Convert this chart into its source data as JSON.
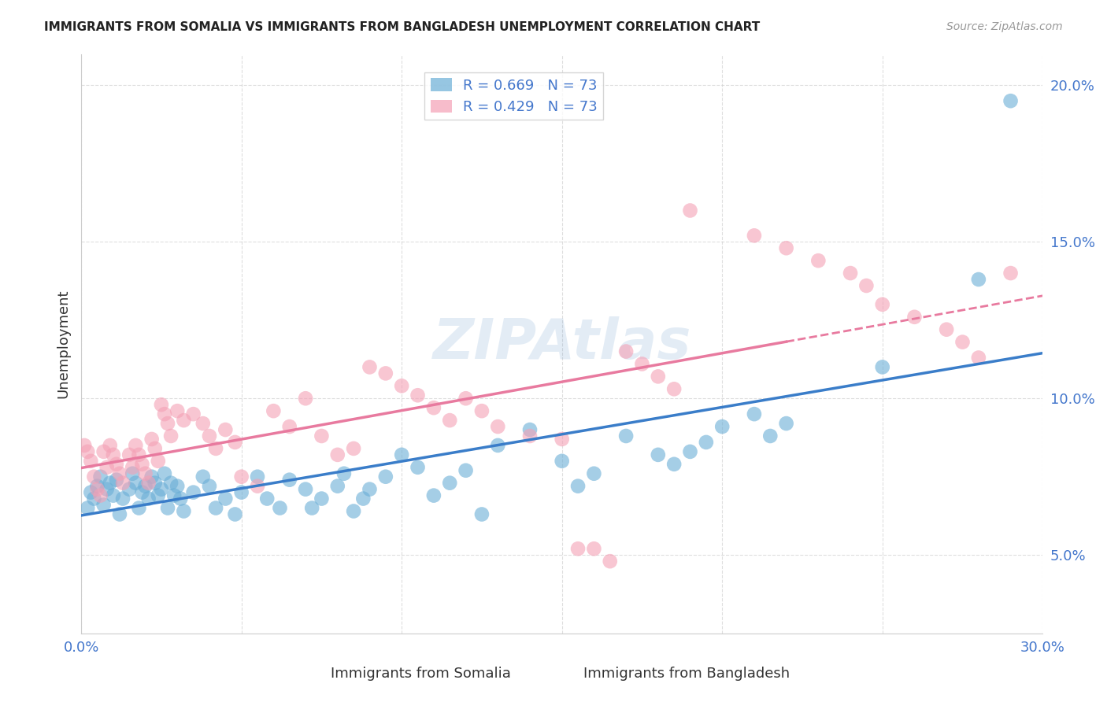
{
  "title": "IMMIGRANTS FROM SOMALIA VS IMMIGRANTS FROM BANGLADESH UNEMPLOYMENT CORRELATION CHART",
  "source": "Source: ZipAtlas.com",
  "xlabel_somalia": "Immigrants from Somalia",
  "xlabel_bangladesh": "Immigrants from Bangladesh",
  "ylabel": "Unemployment",
  "xmin": 0.0,
  "xmax": 0.3,
  "ymin": 0.025,
  "ymax": 0.21,
  "yticks": [
    0.05,
    0.1,
    0.15,
    0.2
  ],
  "ytick_labels": [
    "5.0%",
    "10.0%",
    "15.0%",
    "20.0%"
  ],
  "xticks": [
    0.0,
    0.05,
    0.1,
    0.15,
    0.2,
    0.25,
    0.3
  ],
  "xtick_labels": [
    "0.0%",
    "",
    "",
    "",
    "",
    "",
    "30.0%"
  ],
  "somalia_color": "#6aaed6",
  "bangladesh_color": "#f4a0b5",
  "somalia_line_color": "#3a7dc9",
  "bangladesh_line_color": "#e87a9f",
  "axis_color": "#6699cc",
  "watermark": "ZIPAtlas",
  "R_somalia": 0.669,
  "R_bangladesh": 0.429,
  "N": 73,
  "somalia_x": [
    0.002,
    0.003,
    0.004,
    0.005,
    0.006,
    0.007,
    0.008,
    0.009,
    0.01,
    0.011,
    0.012,
    0.013,
    0.015,
    0.016,
    0.017,
    0.018,
    0.019,
    0.02,
    0.021,
    0.022,
    0.023,
    0.024,
    0.025,
    0.026,
    0.027,
    0.028,
    0.029,
    0.03,
    0.031,
    0.032,
    0.035,
    0.038,
    0.04,
    0.042,
    0.045,
    0.048,
    0.05,
    0.055,
    0.058,
    0.062,
    0.065,
    0.07,
    0.072,
    0.075,
    0.08,
    0.082,
    0.085,
    0.088,
    0.09,
    0.095,
    0.1,
    0.105,
    0.11,
    0.115,
    0.12,
    0.125,
    0.13,
    0.14,
    0.15,
    0.155,
    0.16,
    0.17,
    0.18,
    0.185,
    0.19,
    0.195,
    0.2,
    0.21,
    0.215,
    0.22,
    0.25,
    0.28,
    0.29
  ],
  "somalia_y": [
    0.065,
    0.07,
    0.068,
    0.072,
    0.075,
    0.066,
    0.071,
    0.073,
    0.069,
    0.074,
    0.063,
    0.068,
    0.071,
    0.076,
    0.073,
    0.065,
    0.07,
    0.072,
    0.068,
    0.075,
    0.073,
    0.069,
    0.071,
    0.076,
    0.065,
    0.073,
    0.069,
    0.072,
    0.068,
    0.064,
    0.07,
    0.075,
    0.072,
    0.065,
    0.068,
    0.063,
    0.07,
    0.075,
    0.068,
    0.065,
    0.074,
    0.071,
    0.065,
    0.068,
    0.072,
    0.076,
    0.064,
    0.068,
    0.071,
    0.075,
    0.082,
    0.078,
    0.069,
    0.073,
    0.077,
    0.063,
    0.085,
    0.09,
    0.08,
    0.072,
    0.076,
    0.088,
    0.082,
    0.079,
    0.083,
    0.086,
    0.091,
    0.095,
    0.088,
    0.092,
    0.11,
    0.138,
    0.195
  ],
  "bangladesh_x": [
    0.001,
    0.002,
    0.003,
    0.004,
    0.005,
    0.006,
    0.007,
    0.008,
    0.009,
    0.01,
    0.011,
    0.012,
    0.013,
    0.015,
    0.016,
    0.017,
    0.018,
    0.019,
    0.02,
    0.021,
    0.022,
    0.023,
    0.024,
    0.025,
    0.026,
    0.027,
    0.028,
    0.03,
    0.032,
    0.035,
    0.038,
    0.04,
    0.042,
    0.045,
    0.048,
    0.05,
    0.055,
    0.06,
    0.065,
    0.07,
    0.075,
    0.08,
    0.085,
    0.09,
    0.095,
    0.1,
    0.105,
    0.11,
    0.115,
    0.12,
    0.125,
    0.13,
    0.14,
    0.15,
    0.155,
    0.16,
    0.165,
    0.17,
    0.175,
    0.18,
    0.185,
    0.19,
    0.21,
    0.22,
    0.23,
    0.24,
    0.245,
    0.25,
    0.26,
    0.27,
    0.275,
    0.28,
    0.29
  ],
  "bangladesh_y": [
    0.085,
    0.083,
    0.08,
    0.075,
    0.071,
    0.069,
    0.083,
    0.078,
    0.085,
    0.082,
    0.079,
    0.076,
    0.073,
    0.082,
    0.078,
    0.085,
    0.082,
    0.079,
    0.076,
    0.073,
    0.087,
    0.084,
    0.08,
    0.098,
    0.095,
    0.092,
    0.088,
    0.096,
    0.093,
    0.095,
    0.092,
    0.088,
    0.084,
    0.09,
    0.086,
    0.075,
    0.072,
    0.096,
    0.091,
    0.1,
    0.088,
    0.082,
    0.084,
    0.11,
    0.108,
    0.104,
    0.101,
    0.097,
    0.093,
    0.1,
    0.096,
    0.091,
    0.088,
    0.087,
    0.052,
    0.052,
    0.048,
    0.115,
    0.111,
    0.107,
    0.103,
    0.16,
    0.152,
    0.148,
    0.144,
    0.14,
    0.136,
    0.13,
    0.126,
    0.122,
    0.118,
    0.113,
    0.14
  ],
  "background_color": "#ffffff",
  "grid_color": "#d0d0d0",
  "title_color": "#222222",
  "tick_label_color": "#4477cc"
}
